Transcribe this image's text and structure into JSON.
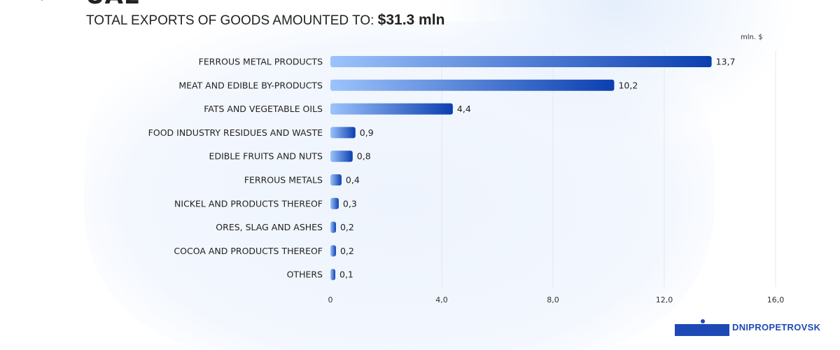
{
  "header": {
    "country": "UAE",
    "subtitle": "TOTAL EXPORTS OF GOODS AMOUNTED TO:",
    "total": "$31.3 mln"
  },
  "brand": {
    "name": "DNIPROPETROVSK"
  },
  "chart_data": {
    "type": "bar",
    "orientation": "horizontal",
    "unit_label": "mln. $",
    "categories": [
      "FERROUS METAL PRODUCTS",
      "MEAT AND EDIBLE BY-PRODUCTS",
      "FATS AND VEGETABLE OILS",
      "FOOD INDUSTRY RESIDUES AND WASTE",
      "EDIBLE FRUITS AND NUTS",
      "FERROUS METALS",
      "NICKEL AND PRODUCTS THEREOF",
      "ORES, SLAG AND ASHES",
      "COCOA AND PRODUCTS THEREOF",
      "OTHERS"
    ],
    "values": [
      13.7,
      10.2,
      4.4,
      0.9,
      0.8,
      0.4,
      0.3,
      0.2,
      0.2,
      0.1
    ],
    "value_labels": [
      "13,7",
      "10,2",
      "4,4",
      "0,9",
      "0,8",
      "0,4",
      "0,3",
      "0,2",
      "0,2",
      "0,1"
    ],
    "xlim": [
      0,
      16
    ],
    "ticks": [
      0,
      4,
      8,
      12,
      16
    ],
    "tick_labels": [
      "0",
      "4,0",
      "8,0",
      "12,0",
      "16,0"
    ],
    "grid": "vertical",
    "colors": {
      "bar_start": "#9cc3fb",
      "bar_end": "#0b3fb0"
    }
  }
}
